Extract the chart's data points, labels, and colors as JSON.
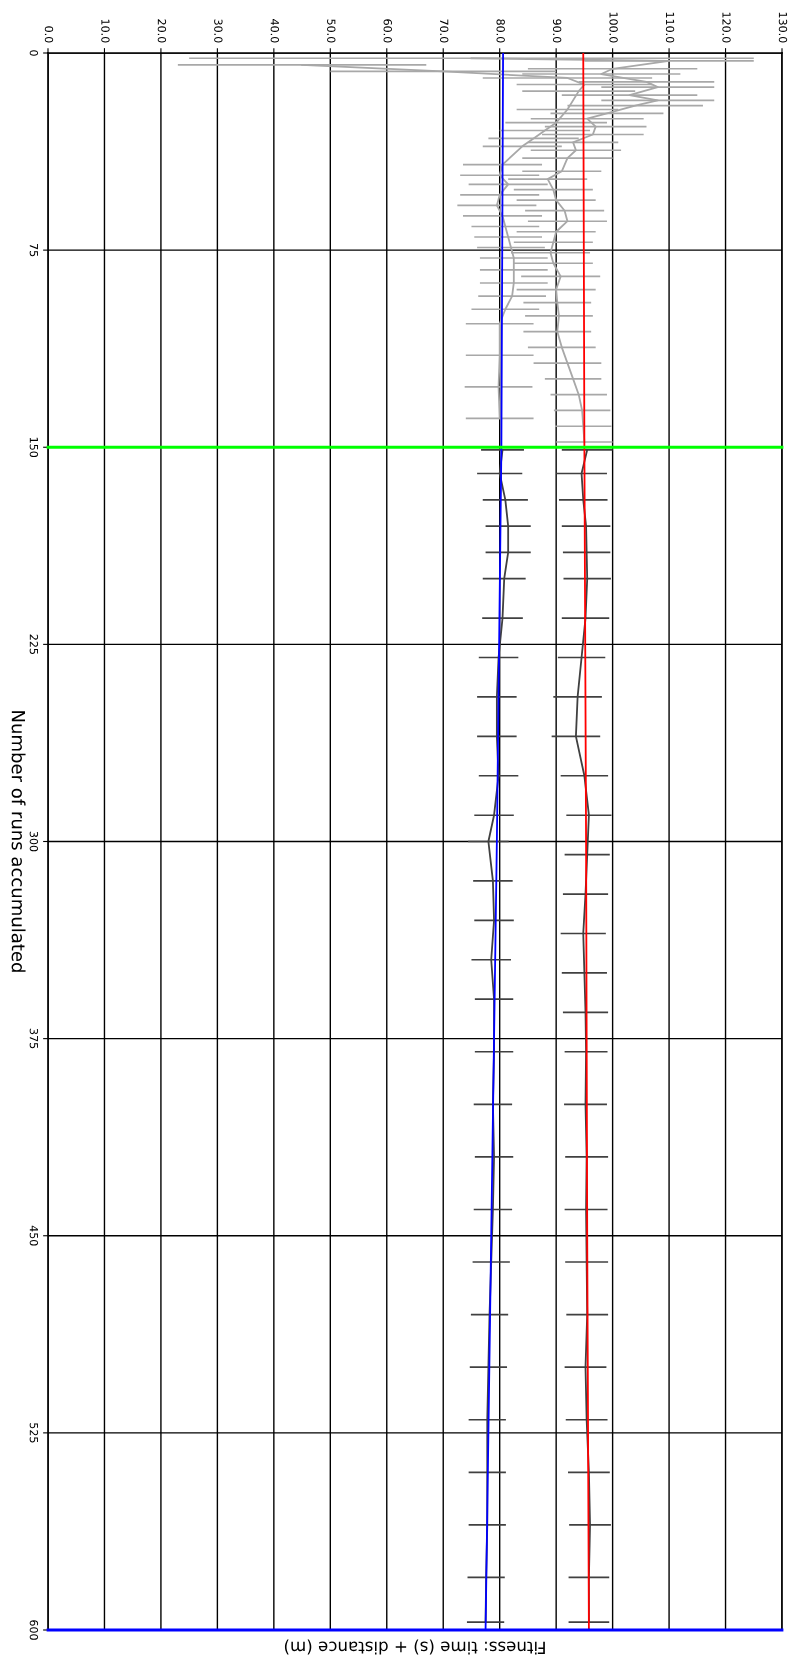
{
  "chart_data": {
    "type": "line",
    "orientation": "horizontal",
    "xlabel": "Fitness: time (s) + distance (m)",
    "ylabel": "Number of runs accumulated",
    "xlim": [
      0,
      130
    ],
    "xticks": [
      {
        "value": 0,
        "label": "0.0"
      },
      {
        "value": 10,
        "label": "10.0"
      },
      {
        "value": 20,
        "label": "20.0"
      },
      {
        "value": 30,
        "label": "30.0"
      },
      {
        "value": 40,
        "label": "40.0"
      },
      {
        "value": 50,
        "label": "50.0"
      },
      {
        "value": 60,
        "label": "60.0"
      },
      {
        "value": 70,
        "label": "70.0"
      },
      {
        "value": 80,
        "label": "80.0"
      },
      {
        "value": 90,
        "label": "90.0"
      },
      {
        "value": 100,
        "label": "100.0"
      },
      {
        "value": 110,
        "label": "110.0"
      },
      {
        "value": 120,
        "label": "120.0"
      },
      {
        "value": 130,
        "label": "130.0"
      }
    ],
    "ylim": [
      600,
      0
    ],
    "yticks": [
      0,
      75,
      150,
      225,
      300,
      375,
      450,
      525,
      600
    ],
    "grid": true,
    "series": [
      {
        "color": "#a8a8a8",
        "x": [
          2,
          3,
          6,
          8,
          11,
          13,
          16,
          18,
          20,
          23,
          25,
          28,
          31,
          34,
          37,
          40,
          45,
          48,
          52,
          56,
          60,
          64,
          68,
          72,
          76,
          80,
          85,
          90,
          95,
          100,
          106,
          112,
          118,
          124,
          130,
          136,
          142,
          148
        ],
        "values": [
          75,
          110,
          100,
          98,
          106,
          108,
          103,
          108,
          104,
          99,
          95.5,
          97,
          96.5,
          93,
          93.5,
          92,
          91,
          88.5,
          89.5,
          90,
          91.5,
          92,
          90,
          89.5,
          89,
          89.5,
          90.8,
          90,
          90.2,
          90.5,
          90.2,
          91,
          92,
          93,
          94,
          94.6,
          94.8,
          95
        ],
        "errors": [
          50,
          15,
          15,
          14,
          12,
          10,
          12,
          10,
          12,
          10,
          10,
          9,
          9,
          8,
          8,
          8,
          7,
          7,
          7,
          7,
          7,
          7,
          7,
          7,
          7,
          7,
          7,
          7,
          6,
          6,
          6,
          6,
          6,
          5,
          5,
          5,
          5,
          5
        ]
      },
      {
        "color": "#a8a8a8",
        "x": [
          4.5,
          7,
          9.5,
          12,
          14.5,
          21.5,
          26.5,
          29.5,
          32.5,
          35.5,
          42.5,
          46.5,
          50,
          54,
          58,
          62,
          66,
          70,
          74,
          78,
          82.5,
          87.5,
          92.5,
          97.5,
          103,
          115,
          127,
          139
        ],
        "values": [
          45,
          70,
          92,
          95,
          94,
          92,
          90,
          88,
          86,
          84,
          80.5,
          80,
          81.5,
          80,
          79.5,
          80.5,
          81,
          81.5,
          82,
          82.5,
          82.5,
          82.5,
          82.2,
          81,
          80,
          80,
          79.8,
          80
        ],
        "errors": [
          22,
          20,
          15,
          12,
          10,
          9,
          9,
          8,
          8,
          7,
          7,
          7,
          7,
          7,
          7,
          7,
          6,
          6,
          6,
          6,
          6,
          6,
          6,
          6,
          6,
          6,
          6,
          6
        ]
      },
      {
        "color": "#404040",
        "x": [
          151,
          160,
          170,
          180,
          190,
          200,
          215,
          230,
          245,
          260,
          275,
          290,
          305,
          320,
          335,
          350,
          365,
          380,
          400,
          420,
          440,
          460,
          480,
          500,
          520,
          540,
          560,
          580,
          597
        ],
        "values": [
          95.5,
          94.5,
          94.8,
          95.3,
          95.4,
          95.5,
          95.2,
          94.5,
          93.8,
          93.5,
          95,
          95.8,
          95.5,
          95.2,
          94.8,
          95,
          95.2,
          95.3,
          95.2,
          95.4,
          95.3,
          95.4,
          95.5,
          95.2,
          95.4,
          95.8,
          96,
          95.8,
          95.8
        ],
        "errors": [
          4.5,
          4.5,
          4.3,
          4.3,
          4.2,
          4.2,
          4.2,
          4.2,
          4.3,
          4.3,
          4.2,
          4,
          4,
          4,
          4,
          4,
          4,
          3.8,
          3.8,
          3.8,
          3.8,
          3.8,
          3.7,
          3.7,
          3.7,
          3.7,
          3.7,
          3.6,
          3.6
        ]
      },
      {
        "color": "#404040",
        "x": [
          151,
          160,
          170,
          180,
          190,
          200,
          215,
          230,
          245,
          260,
          275,
          290,
          300,
          315,
          330,
          345,
          360,
          380,
          400,
          420,
          440,
          460,
          480,
          500,
          520,
          540,
          560,
          580,
          597
        ],
        "values": [
          80.5,
          80,
          81,
          81.5,
          81.5,
          80.8,
          80.5,
          79.8,
          79.5,
          79.5,
          79.8,
          79,
          78,
          78.8,
          79,
          78.5,
          79,
          79,
          78.8,
          79,
          78.8,
          78.5,
          78.2,
          78,
          77.8,
          77.8,
          77.8,
          77.6,
          77.5
        ],
        "errors": [
          3.8,
          4,
          4,
          4,
          4,
          3.8,
          3.6,
          3.5,
          3.5,
          3.5,
          3.5,
          3.5,
          3.6,
          3.5,
          3.5,
          3.5,
          3.4,
          3.4,
          3.4,
          3.4,
          3.4,
          3.3,
          3.3,
          3.3,
          3.3,
          3.3,
          3.3,
          3.3,
          3.3
        ]
      },
      {
        "color": "#0000ff",
        "x": [
          0,
          150,
          300,
          450,
          600
        ],
        "values": [
          80.6,
          80.3,
          79.5,
          78.5,
          77.5
        ]
      },
      {
        "color": "#ff0000",
        "x": [
          0,
          150,
          300,
          450,
          600
        ],
        "values": [
          94.8,
          95,
          95.3,
          95.5,
          95.8
        ]
      }
    ],
    "ref_lines": [
      {
        "axis": "y",
        "value": 150,
        "color": "#00ff00"
      },
      {
        "axis": "y",
        "value": 600,
        "color": "#0000ff"
      }
    ]
  }
}
